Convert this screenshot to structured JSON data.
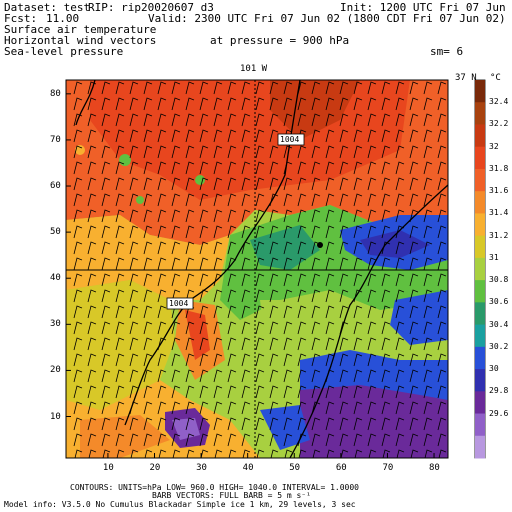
{
  "header": {
    "dataset": "Dataset: test",
    "rip": "RIP: rip20020607 d3",
    "init": "Init: 1200 UTC Fri 07 Jun 02",
    "fcst": "Fcst:",
    "fcst_value": "11.00",
    "valid": "Valid: 2300 UTC Fri 07 Jun 02 (1800 CDT Fri 07 Jun 02)",
    "field1": "Surface air temperature",
    "field2": "Horizontal wind vectors",
    "field3": "Sea-level pressure",
    "pressure": "at pressure = 900 hPa",
    "sm": "sm= 6"
  },
  "map": {
    "top_label": "101 W",
    "right_label": "37 N",
    "x_ticks": [
      "10",
      "20",
      "30",
      "40",
      "50",
      "60",
      "70",
      "80"
    ],
    "y_ticks": [
      "10",
      "20",
      "30",
      "40",
      "50",
      "60",
      "70",
      "80"
    ],
    "contour_labels": [
      "1004",
      "1004"
    ]
  },
  "colorbar": {
    "unit": "°C",
    "labels": [
      "32.4",
      "32.2",
      "32",
      "31.8",
      "31.6",
      "31.4",
      "31.2",
      "31",
      "30.8",
      "30.6",
      "30.4",
      "30.2",
      "30",
      "29.8",
      "29.6"
    ],
    "colors": [
      "#7a2a0a",
      "#a8420f",
      "#c83a12",
      "#e8461e",
      "#f06028",
      "#f48a2a",
      "#f8b030",
      "#d8c828",
      "#a8d040",
      "#60c040",
      "#2a9a6a",
      "#1aa0a0",
      "#2850d8",
      "#3030b0",
      "#6a2a9a",
      "#9060c8",
      "#b898e0"
    ]
  },
  "footer": {
    "line1": "CONTOURS:  UNITS=hPa   LOW=  960.0      HIGH=  1040.0      INTERVAL=   1.0000",
    "line2": "BARB VECTORS:  FULL BARB = 5 m s⁻¹",
    "line3": "Model info: V3.5.0   No Cumulus   Blackadar   Simple ice      1 km,    29 levels,      3 sec"
  }
}
